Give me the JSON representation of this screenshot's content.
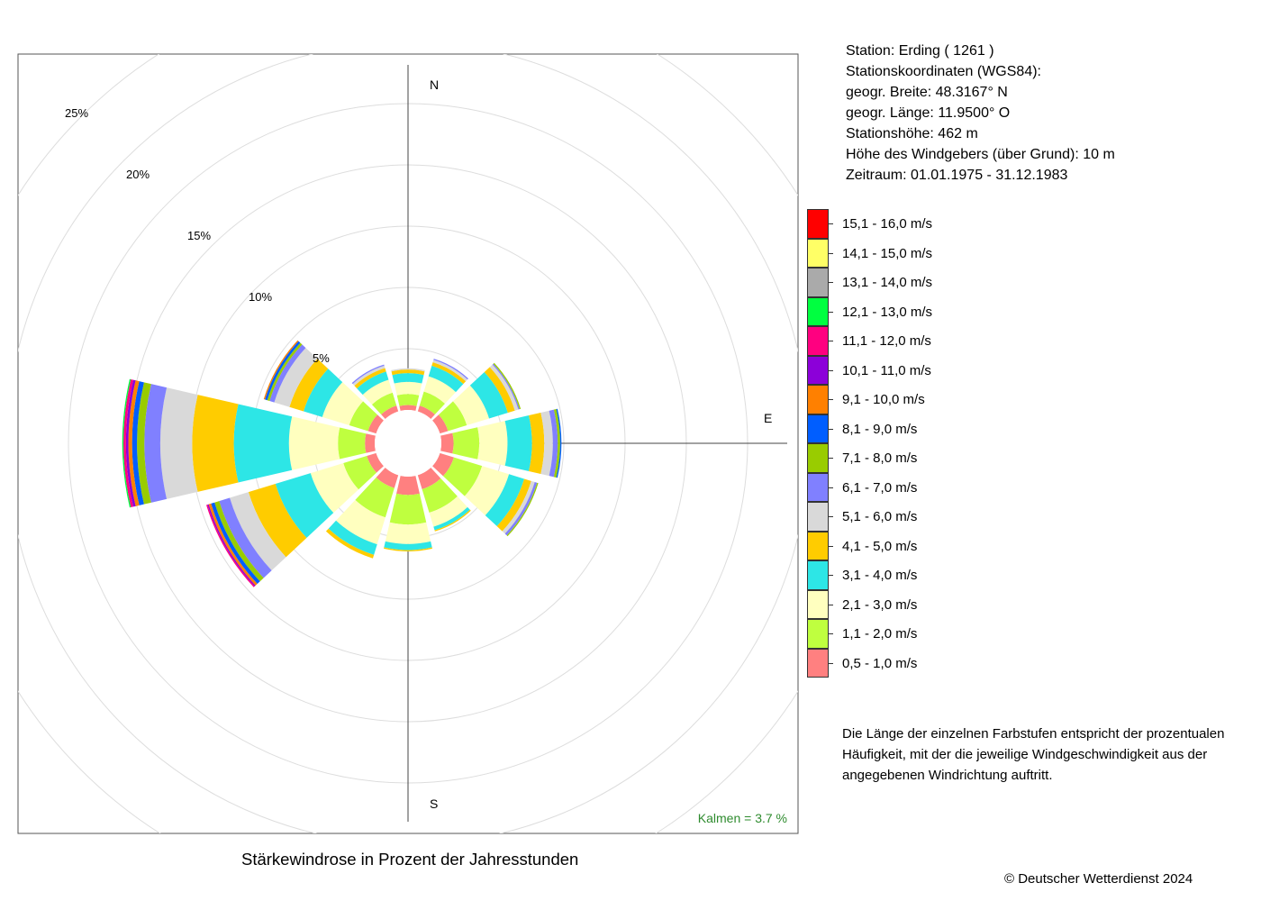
{
  "station": {
    "line1": "Station:  Erding  ( 1261 )",
    "line2": "Stationskoordinaten (WGS84):",
    "line3": "geogr. Breite: 48.3167° N",
    "line4": "geogr. Länge: 11.9500° O",
    "line5": "Stationshöhe: 462 m",
    "line6": "Höhe des Windgebers (über Grund): 10 m",
    "line7": "Zeitraum: 01.01.1975 - 31.12.1983"
  },
  "description": [
    "Die Länge der einzelnen Farbstufen entspricht der prozentualen",
    "Häufigkeit, mit der die jeweilige Windgeschwindigkeit aus der",
    "angegebenen Windrichtung auftritt."
  ],
  "caption": "Stärkewindrose in Prozent der Jahresstunden",
  "copyright": "© Deutscher Wetterdienst  2024",
  "chart_data": {
    "type": "windrose",
    "title": "Stärkewindrose in Prozent der Jahresstunden",
    "compass_labels": {
      "N": "N",
      "E": "E",
      "S": "S"
    },
    "radial_unit": "%",
    "radial_ticks": [
      5,
      10,
      15,
      20,
      25
    ],
    "radial_tick_labels": [
      "5%",
      "10%",
      "15%",
      "20%",
      "25%"
    ],
    "calm_label": "Kalmen  =  3.7 %",
    "calm_percent": 3.7,
    "speed_classes": [
      {
        "label": "0,5 - 1,0 m/s",
        "color": "#ff8080"
      },
      {
        "label": "1,1 - 2,0 m/s",
        "color": "#bfff3f"
      },
      {
        "label": "2,1 - 3,0 m/s",
        "color": "#ffffbf"
      },
      {
        "label": "3,1 - 4,0 m/s",
        "color": "#2de6e6"
      },
      {
        "label": "4,1 - 5,0 m/s",
        "color": "#ffcc00"
      },
      {
        "label": "5,1 - 6,0 m/s",
        "color": "#d9d9d9"
      },
      {
        "label": "6,1 - 7,0 m/s",
        "color": "#8080ff"
      },
      {
        "label": "7,1 - 8,0 m/s",
        "color": "#99cc00"
      },
      {
        "label": "8,1 - 9,0 m/s",
        "color": "#005eff"
      },
      {
        "label": "9,1 - 10,0 m/s",
        "color": "#ff8000"
      },
      {
        "label": "10,1 - 11,0 m/s",
        "color": "#8c00d9"
      },
      {
        "label": "11,1 - 12,0 m/s",
        "color": "#ff0080"
      },
      {
        "label": "12,1 - 13,0 m/s",
        "color": "#00ff40"
      },
      {
        "label": "13,1 - 14,0 m/s",
        "color": "#aaaaaa"
      },
      {
        "label": "14,1 - 15,0 m/s",
        "color": "#ffff66"
      },
      {
        "label": "15,1 - 16,0 m/s",
        "color": "#ff0000"
      }
    ],
    "directions_deg": [
      0,
      30,
      60,
      90,
      120,
      150,
      180,
      210,
      240,
      270,
      300,
      330
    ],
    "series": [
      {
        "dir": 0,
        "values": [
          0.4,
          0.9,
          1.0,
          0.7,
          0.3,
          0.1
        ]
      },
      {
        "dir": 30,
        "values": [
          0.5,
          1.2,
          1.3,
          0.9,
          0.3,
          0.2,
          0.1
        ]
      },
      {
        "dir": 60,
        "values": [
          0.7,
          1.6,
          1.9,
          1.6,
          0.6,
          0.3,
          0.1,
          0.1
        ]
      },
      {
        "dir": 90,
        "values": [
          1.0,
          2.1,
          2.3,
          2.0,
          1.0,
          0.7,
          0.4,
          0.2,
          0.1
        ]
      },
      {
        "dir": 120,
        "values": [
          1.2,
          2.4,
          2.3,
          1.3,
          0.6,
          0.3,
          0.2,
          0.1
        ]
      },
      {
        "dir": 150,
        "values": [
          1.2,
          2.0,
          1.2,
          0.3,
          0.1
        ]
      },
      {
        "dir": 180,
        "values": [
          1.5,
          2.4,
          1.6,
          0.5,
          0.1
        ]
      },
      {
        "dir": 210,
        "values": [
          1.1,
          2.5,
          2.3,
          0.9,
          0.3
        ]
      },
      {
        "dir": 240,
        "values": [
          0.8,
          2.0,
          2.8,
          3.0,
          2.3,
          1.6,
          0.9,
          0.4,
          0.3,
          0.2,
          0.1,
          0.1
        ]
      },
      {
        "dir": 270,
        "values": [
          0.8,
          2.2,
          4.0,
          4.5,
          3.4,
          2.6,
          1.3,
          0.6,
          0.4,
          0.3,
          0.2,
          0.2,
          0.1
        ]
      },
      {
        "dir": 300,
        "values": [
          0.7,
          1.6,
          2.3,
          1.6,
          1.2,
          1.3,
          0.4,
          0.2,
          0.2,
          0.1
        ]
      },
      {
        "dir": 330,
        "values": [
          0.5,
          1.1,
          1.1,
          0.7,
          0.3,
          0.2,
          0.1
        ]
      }
    ]
  }
}
